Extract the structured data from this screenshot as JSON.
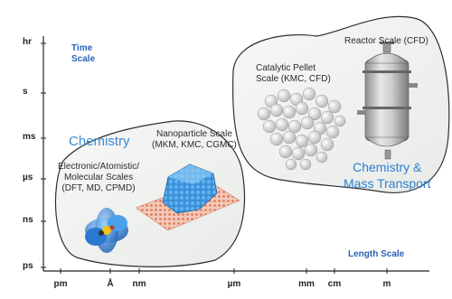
{
  "axis": {
    "time_title": "Time",
    "time_title2": "Scale",
    "length_title": "Length Scale",
    "y_ticks": [
      "hr",
      "s",
      "ms",
      "µs",
      "ns",
      "ps"
    ],
    "x_ticks": [
      "pm",
      "Å",
      "nm",
      "µm",
      "mm",
      "cm",
      "m"
    ]
  },
  "regions": {
    "chemistry": "Chemistry",
    "chem_mass_line1": "Chemistry &",
    "chem_mass_line2": "Mass Transport"
  },
  "scales": {
    "electronic": [
      "Electronic/Atomistic/",
      "Molecular Scales",
      "(DFT, MD, CPMD)"
    ],
    "nanoparticle": [
      "Nanoparticle Scale",
      "(MKM, KMC, CGMC)"
    ],
    "pellet": [
      "Catalytic Pellet",
      "Scale (KMC, CFD)"
    ],
    "reactor": "Reactor Scale (CFD)"
  }
}
